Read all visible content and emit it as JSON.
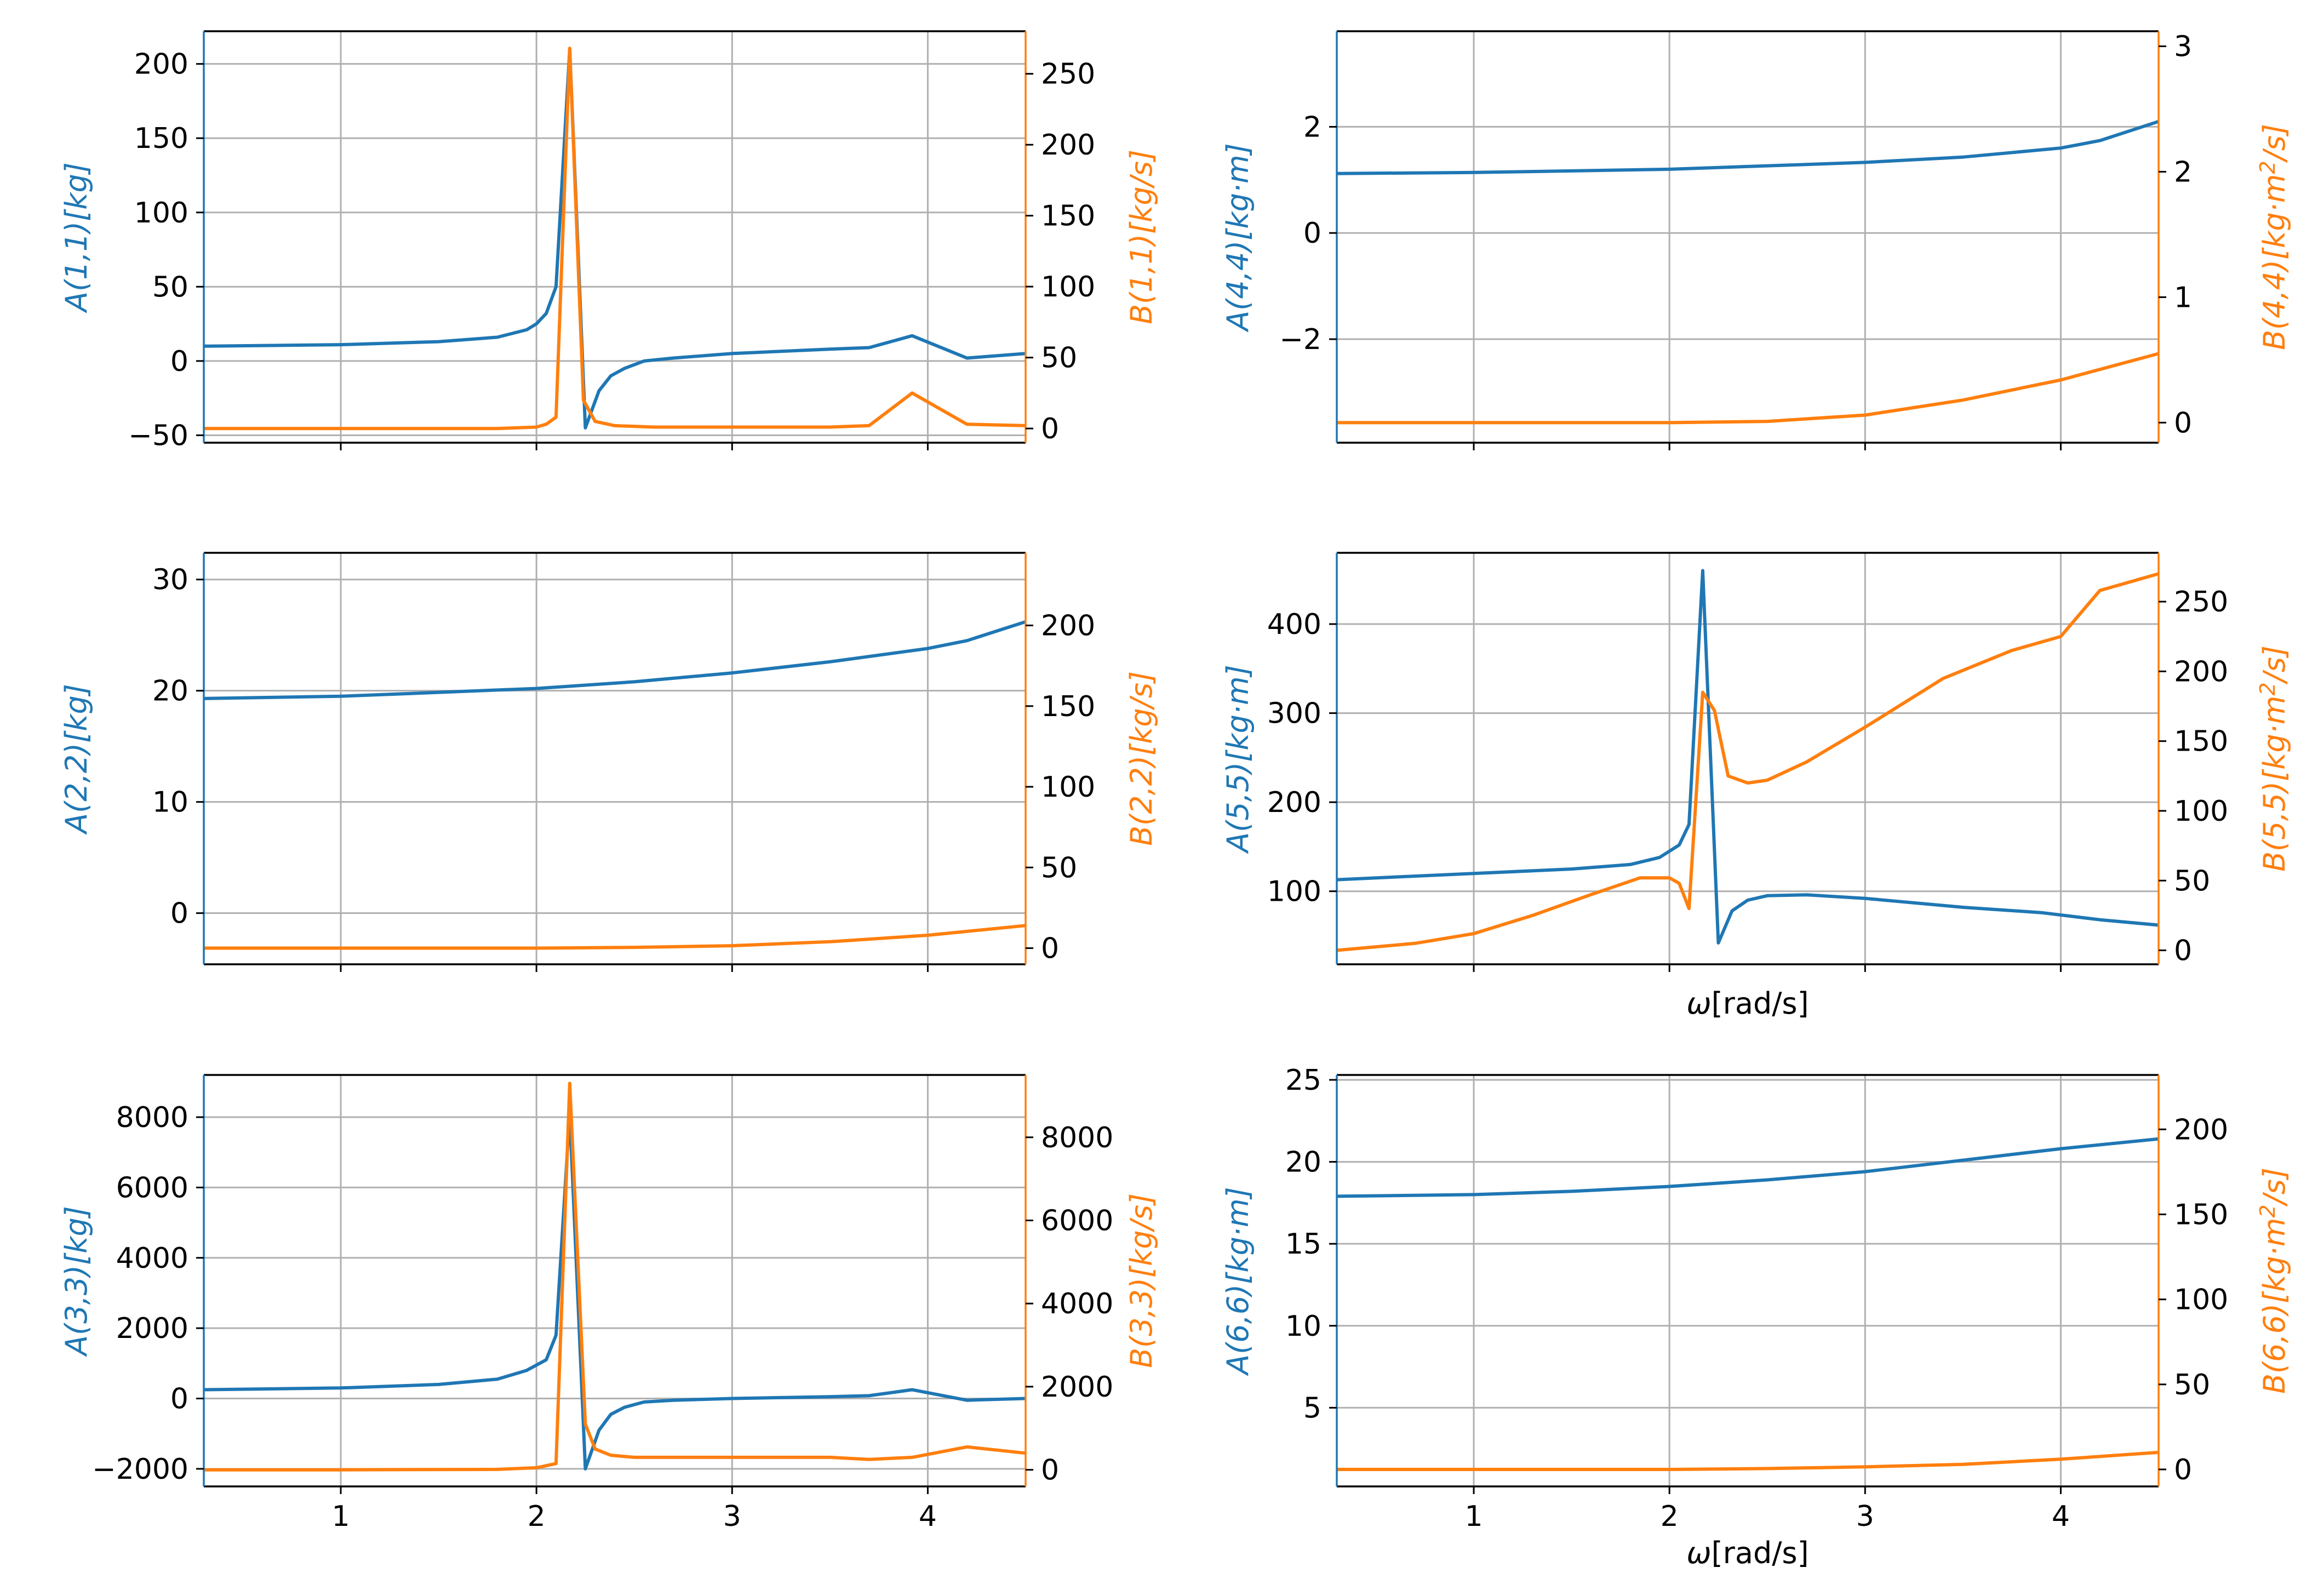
{
  "colors": {
    "a": "#1f77b4",
    "b": "#ff7f0e",
    "grid": "#b0b0b0",
    "axis": "#000000"
  },
  "chart_data": [
    {
      "type": "line",
      "panel": "top-left",
      "xlim": [
        0.3,
        4.5
      ],
      "xticks": [
        1,
        2,
        3,
        4
      ],
      "show_xticklabels": false,
      "xlabel": "",
      "left": {
        "label": "A(1,1)[kg]",
        "ylim": [
          -55,
          222
        ],
        "ticks": [
          -50,
          0,
          50,
          100,
          150,
          200
        ],
        "x": [
          0.3,
          1.0,
          1.5,
          1.8,
          1.95,
          2.0,
          2.05,
          2.1,
          2.17,
          2.25,
          2.32,
          2.38,
          2.45,
          2.55,
          2.7,
          3.0,
          3.5,
          3.7,
          3.92,
          4.2,
          4.5
        ],
        "y": [
          10,
          11,
          13,
          16,
          21,
          25,
          32,
          50,
          210,
          -45,
          -20,
          -10,
          -5,
          0,
          2,
          5,
          8,
          9,
          17,
          2,
          5
        ]
      },
      "right": {
        "label": "B(1,1)[kg/s]",
        "ylim": [
          -10,
          280
        ],
        "ticks": [
          0,
          50,
          100,
          150,
          200,
          250
        ],
        "x": [
          0.3,
          1.0,
          1.8,
          2.0,
          2.05,
          2.1,
          2.17,
          2.24,
          2.3,
          2.4,
          2.6,
          3.0,
          3.5,
          3.7,
          3.92,
          4.2,
          4.5
        ],
        "y": [
          0,
          0,
          0,
          1,
          3,
          8,
          268,
          20,
          5,
          2,
          1,
          1,
          1,
          2,
          25,
          3,
          2
        ]
      }
    },
    {
      "type": "line",
      "panel": "top-right",
      "xlim": [
        0.3,
        4.5
      ],
      "xticks": [
        1,
        2,
        3,
        4
      ],
      "show_xticklabels": false,
      "xlabel": "",
      "left": {
        "label": "A(4,4)[kg·m]",
        "ylim": [
          -3.95,
          3.8
        ],
        "ticks": [
          -2,
          0,
          2
        ],
        "x": [
          0.3,
          1.0,
          2.0,
          3.0,
          3.5,
          4.0,
          4.2,
          4.5
        ],
        "y": [
          1.12,
          1.14,
          1.2,
          1.33,
          1.43,
          1.6,
          1.74,
          2.1
        ]
      },
      "right": {
        "label": "B(4,4)[kg·m²/s]",
        "ylim": [
          -0.16,
          3.12
        ],
        "ticks": [
          0,
          1,
          2,
          3
        ],
        "x": [
          0.3,
          1.0,
          2.0,
          2.5,
          3.0,
          3.5,
          4.0,
          4.5
        ],
        "y": [
          0,
          0,
          0,
          0.01,
          0.06,
          0.18,
          0.34,
          0.55
        ]
      }
    },
    {
      "type": "line",
      "panel": "middle-left",
      "xlim": [
        0.3,
        4.5
      ],
      "xticks": [
        1,
        2,
        3,
        4
      ],
      "show_xticklabels": false,
      "xlabel": "",
      "left": {
        "label": "A(2,2)[kg]",
        "ylim": [
          -4.6,
          32.4
        ],
        "ticks": [
          0,
          10,
          20,
          30
        ],
        "x": [
          0.3,
          1.0,
          2.0,
          2.5,
          3.0,
          3.5,
          4.0,
          4.2,
          4.5
        ],
        "y": [
          19.3,
          19.5,
          20.2,
          20.8,
          21.6,
          22.6,
          23.8,
          24.5,
          26.2
        ]
      },
      "right": {
        "label": "B(2,2)[kg/s]",
        "ylim": [
          -10,
          245
        ],
        "ticks": [
          0,
          50,
          100,
          150,
          200
        ],
        "x": [
          0.3,
          2.0,
          2.5,
          3.0,
          3.5,
          4.0,
          4.5
        ],
        "y": [
          0,
          0,
          0.5,
          1.5,
          4,
          8,
          14
        ]
      }
    },
    {
      "type": "line",
      "panel": "middle-right",
      "xlim": [
        0.3,
        4.5
      ],
      "xticks": [
        1,
        2,
        3,
        4
      ],
      "show_xticklabels": false,
      "xlabel": "ω[rad/s]",
      "left": {
        "label": "A(5,5)[kg·m]",
        "ylim": [
          18,
          480
        ],
        "ticks": [
          100,
          200,
          300,
          400
        ],
        "x": [
          0.3,
          1.0,
          1.5,
          1.8,
          1.95,
          2.05,
          2.1,
          2.17,
          2.25,
          2.32,
          2.4,
          2.5,
          2.7,
          3.0,
          3.5,
          3.9,
          4.2,
          4.5
        ],
        "y": [
          113,
          120,
          125,
          130,
          138,
          152,
          175,
          460,
          42,
          78,
          90,
          95,
          96,
          92,
          82,
          76,
          68,
          62
        ]
      },
      "right": {
        "label": "B(5,5)[kg·m²/s]",
        "ylim": [
          -10,
          285
        ],
        "ticks": [
          0,
          50,
          100,
          150,
          200,
          250
        ],
        "x": [
          0.3,
          0.7,
          1.0,
          1.3,
          1.6,
          1.85,
          2.0,
          2.05,
          2.1,
          2.17,
          2.23,
          2.3,
          2.4,
          2.5,
          2.7,
          3.0,
          3.4,
          3.75,
          4.0,
          4.2,
          4.5
        ],
        "y": [
          0,
          5,
          12,
          25,
          40,
          52,
          52,
          48,
          30,
          185,
          172,
          125,
          120,
          122,
          135,
          160,
          195,
          215,
          225,
          258,
          270
        ]
      }
    },
    {
      "type": "line",
      "panel": "bottom-left",
      "xlim": [
        0.3,
        4.5
      ],
      "xticks": [
        1,
        2,
        3,
        4
      ],
      "show_xticklabels": true,
      "xlabel": "",
      "left": {
        "label": "A(3,3)[kg]",
        "ylim": [
          -2500,
          9200
        ],
        "ticks": [
          -2000,
          0,
          2000,
          4000,
          6000,
          8000
        ],
        "x": [
          0.3,
          1.0,
          1.5,
          1.8,
          1.95,
          2.05,
          2.1,
          2.17,
          2.25,
          2.32,
          2.38,
          2.45,
          2.55,
          2.7,
          3.0,
          3.5,
          3.7,
          3.92,
          4.2,
          4.5
        ],
        "y": [
          250,
          300,
          400,
          550,
          800,
          1100,
          1800,
          8100,
          -2000,
          -900,
          -450,
          -250,
          -100,
          -50,
          0,
          50,
          80,
          250,
          -50,
          0
        ]
      },
      "right": {
        "label": "B(3,3)[kg/s]",
        "ylim": [
          -400,
          9500
        ],
        "ticks": [
          0,
          2000,
          4000,
          6000,
          8000
        ],
        "x": [
          0.3,
          1.0,
          1.8,
          2.0,
          2.1,
          2.17,
          2.25,
          2.3,
          2.38,
          2.5,
          2.7,
          3.0,
          3.5,
          3.7,
          3.92,
          4.2,
          4.5
        ],
        "y": [
          0,
          0,
          10,
          50,
          150,
          9300,
          1100,
          500,
          350,
          300,
          300,
          300,
          300,
          250,
          300,
          550,
          400
        ]
      }
    },
    {
      "type": "line",
      "panel": "bottom-right",
      "xlim": [
        0.3,
        4.5
      ],
      "xticks": [
        1,
        2,
        3,
        4
      ],
      "show_xticklabels": true,
      "xlabel": "ω[rad/s]",
      "left": {
        "label": "A(6,6)[kg·m]",
        "ylim": [
          0.2,
          25.3
        ],
        "ticks": [
          5,
          10,
          15,
          20,
          25
        ],
        "x": [
          0.3,
          1.0,
          1.5,
          2.0,
          2.5,
          3.0,
          3.5,
          4.0,
          4.5
        ],
        "y": [
          17.9,
          18.0,
          18.2,
          18.5,
          18.9,
          19.4,
          20.1,
          20.8,
          21.4
        ]
      },
      "right": {
        "label": "B(6,6)[kg·m²/s]",
        "ylim": [
          -10,
          232
        ],
        "ticks": [
          0,
          50,
          100,
          150,
          200
        ],
        "x": [
          0.3,
          1.5,
          2.0,
          2.5,
          3.0,
          3.5,
          4.0,
          4.5
        ],
        "y": [
          0,
          0,
          0,
          0.5,
          1.5,
          3,
          6,
          10
        ]
      }
    }
  ]
}
